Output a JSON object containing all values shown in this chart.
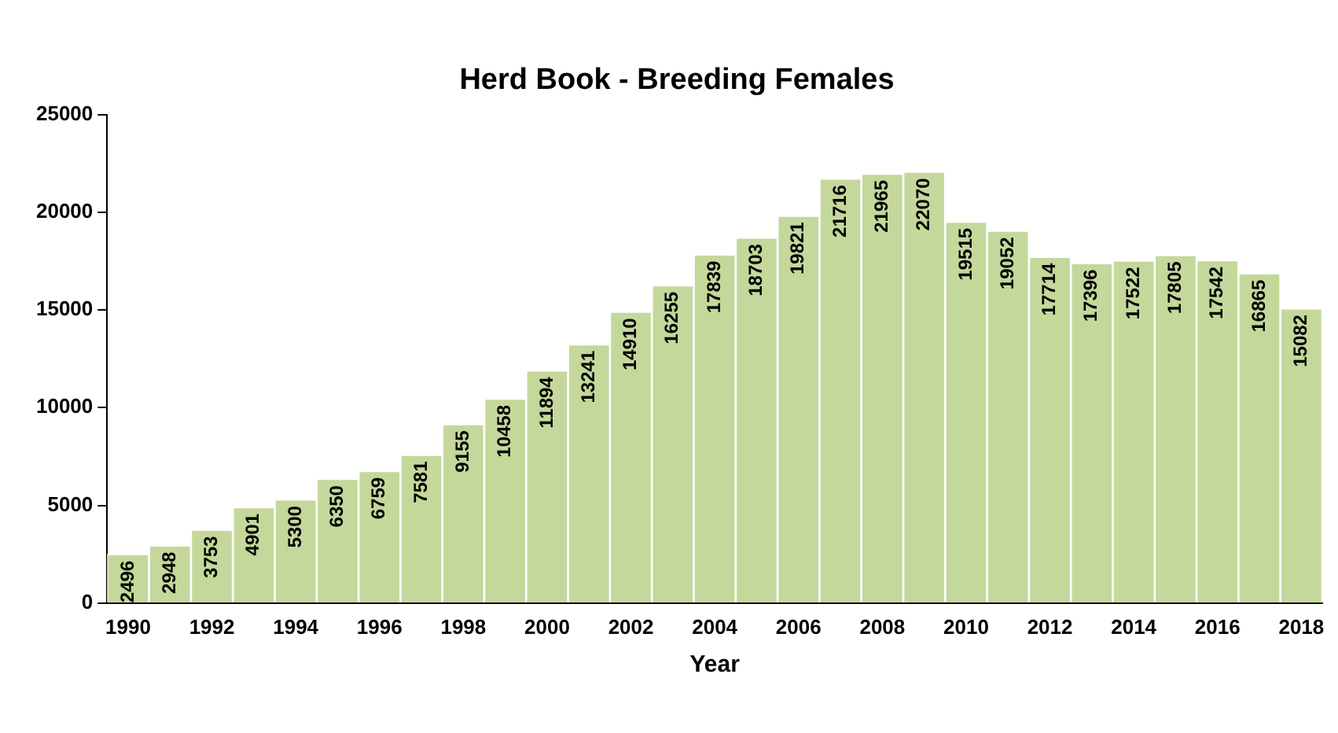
{
  "chart_data": {
    "type": "bar",
    "title": "Herd Book - Breeding Females",
    "xlabel": "Year",
    "categories": [
      "1990",
      null,
      "1992",
      null,
      "1994",
      null,
      "1996",
      null,
      "1998",
      null,
      "2000",
      null,
      "2002",
      null,
      "2004",
      null,
      "2006",
      null,
      "2008",
      null,
      "2010",
      null,
      "2012",
      null,
      "2014",
      null,
      "2016",
      null,
      "2018"
    ],
    "values": [
      2496,
      2948,
      3753,
      4901,
      5300,
      6350,
      6759,
      7581,
      9155,
      10458,
      11894,
      13241,
      14910,
      16255,
      17839,
      18703,
      19821,
      21716,
      21965,
      22070,
      19515,
      19052,
      17714,
      17396,
      17522,
      17805,
      17542,
      16865,
      15082
    ],
    "color": "#c4d89b",
    "ylim": [
      0,
      25000
    ],
    "yticks": [
      0,
      5000,
      10000,
      15000,
      20000,
      25000
    ],
    "grid": false,
    "legend": false,
    "data_labels": true
  }
}
